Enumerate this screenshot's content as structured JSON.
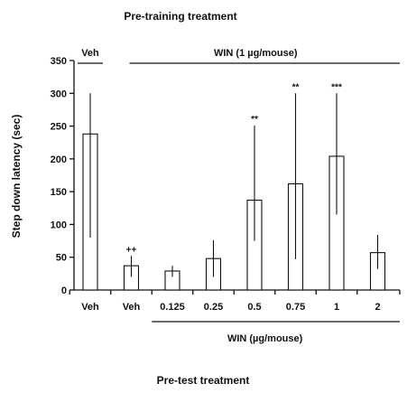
{
  "chart_data": {
    "type": "bar",
    "title": "Pre-training treatment",
    "xlabel": "Pre-test treatment",
    "ylabel": "Step down latency (sec)",
    "ylim": [
      0,
      350
    ],
    "yticks": [
      0,
      50,
      100,
      150,
      200,
      250,
      300,
      350
    ],
    "grid": false,
    "categories": [
      "Veh",
      "Veh",
      "0.125",
      "0.25",
      "0.5",
      "0.75",
      "1",
      "2"
    ],
    "values": [
      238,
      37,
      29,
      48,
      137,
      162,
      204,
      57
    ],
    "error_low": [
      80,
      20,
      20,
      20,
      75,
      47,
      115,
      32
    ],
    "error_high": [
      300,
      52,
      37,
      76,
      251,
      300,
      300,
      84
    ],
    "annotations": [
      "",
      "++",
      "",
      "",
      "**",
      "**",
      "***",
      ""
    ],
    "top_groups": [
      {
        "label": "Veh",
        "from_bar": 0,
        "to_bar": 0
      },
      {
        "label": "WIN (1 µg/mouse)",
        "from_bar": 1,
        "to_bar": 7
      }
    ],
    "bottom_group": {
      "label": "WIN (µg/mouse)",
      "from_bar": 2,
      "to_bar": 7
    }
  }
}
